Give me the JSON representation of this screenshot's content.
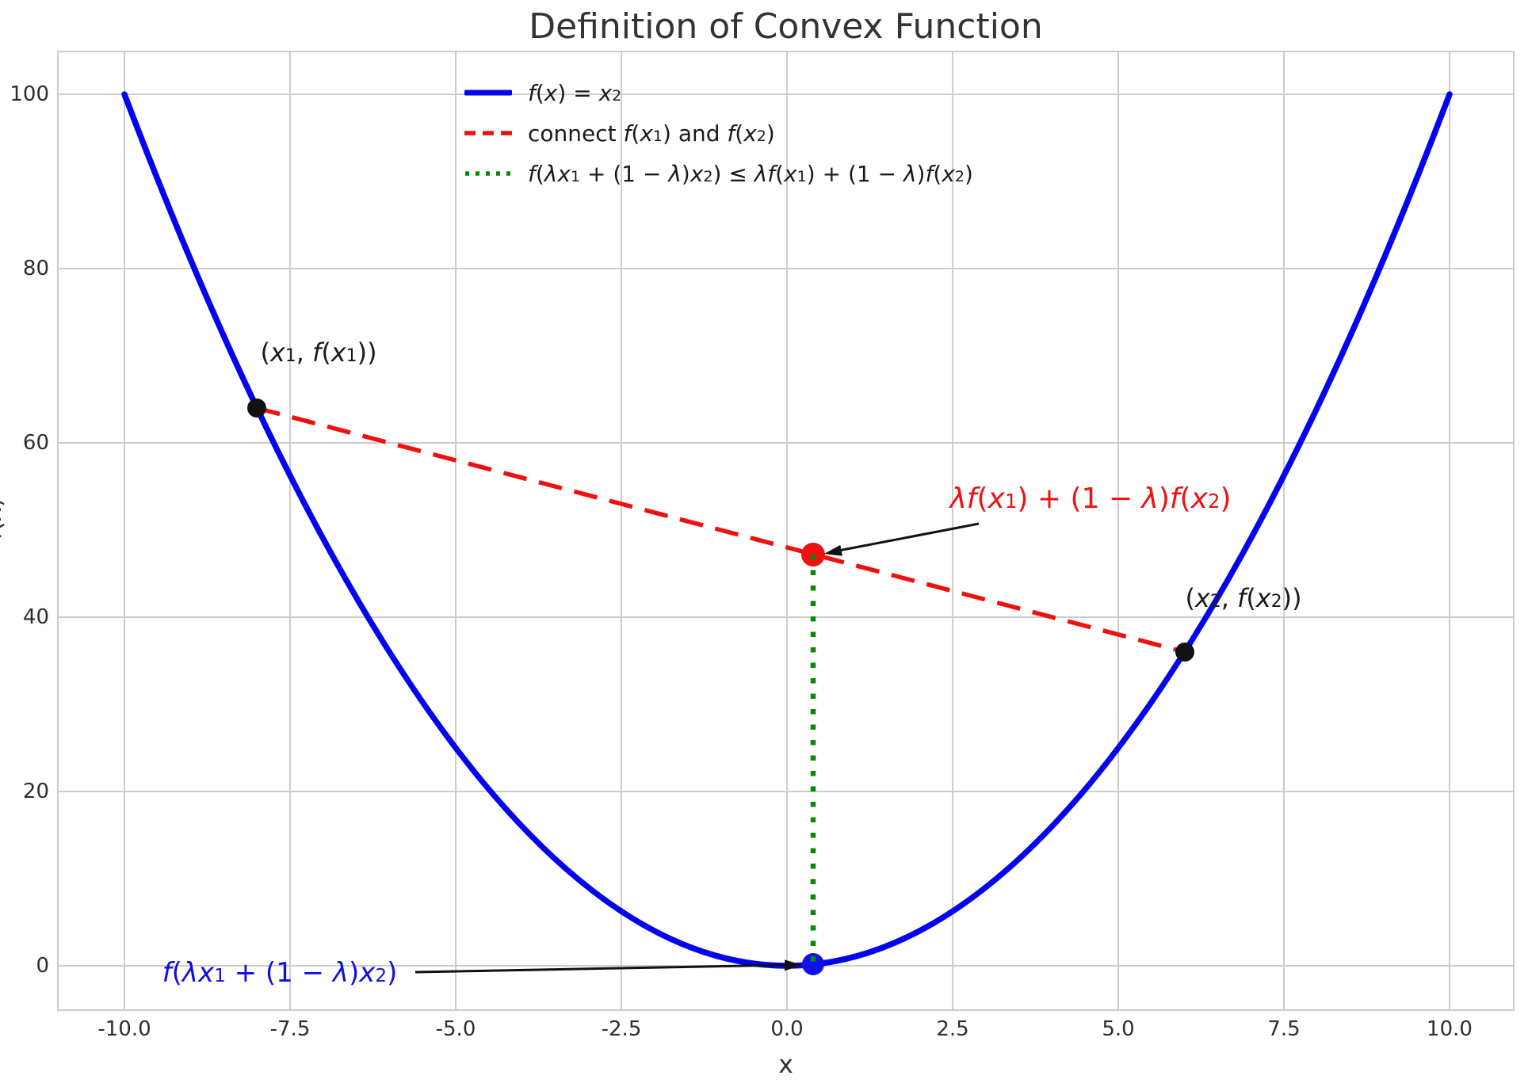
{
  "chart": {
    "title": "Definition of Convex Function",
    "xlabel": "x",
    "ylabel": "f(x)",
    "x_tick_labels": [
      "-10.0",
      "-7.5",
      "-5.0",
      "-2.5",
      "0.0",
      "2.5",
      "5.0",
      "7.5",
      "10.0"
    ],
    "y_tick_labels": [
      "0",
      "20",
      "40",
      "60",
      "80",
      "100"
    ],
    "colors": {
      "curve": "#0303f0",
      "chord": "#f01010",
      "vertical": "#098909",
      "black_point": "#111111",
      "red_point": "#f01010",
      "blue_point": "#1212e8",
      "grid": "#cccccc",
      "frame": "#cccccc",
      "arrow": "#111111",
      "red_text": "#f01010",
      "blue_text": "#0e0ee0"
    }
  },
  "legend": {
    "items": [
      {
        "plain": "f(x) = x²",
        "runs": [
          {
            "t": "f",
            "s": "i"
          },
          {
            "t": "("
          },
          {
            "t": "x",
            "s": "i"
          },
          {
            "t": ") = "
          },
          {
            "t": "x",
            "s": "i"
          },
          {
            "t": "2",
            "s": "sup"
          }
        ]
      },
      {
        "plain": "connect f(x₁) and f(x₂)",
        "runs": [
          {
            "t": "connect "
          },
          {
            "t": "f",
            "s": "i"
          },
          {
            "t": "("
          },
          {
            "t": "x",
            "s": "i"
          },
          {
            "t": "1",
            "s": "sub"
          },
          {
            "t": ") and "
          },
          {
            "t": "f",
            "s": "i"
          },
          {
            "t": "("
          },
          {
            "t": "x",
            "s": "i"
          },
          {
            "t": "2",
            "s": "sub"
          },
          {
            "t": ")"
          }
        ]
      },
      {
        "plain": "f(λx₁ + (1 − λ)x₂) ≤ λf(x₁) + (1 − λ)f(x₂)",
        "runs": [
          {
            "t": "f",
            "s": "i"
          },
          {
            "t": "("
          },
          {
            "t": "λ",
            "s": "i"
          },
          {
            "t": "x",
            "s": "i"
          },
          {
            "t": "1",
            "s": "sub"
          },
          {
            "t": " + (1 − "
          },
          {
            "t": "λ",
            "s": "i"
          },
          {
            "t": ")"
          },
          {
            "t": "x",
            "s": "i"
          },
          {
            "t": "2",
            "s": "sub"
          },
          {
            "t": ") ≤ "
          },
          {
            "t": "λ",
            "s": "i"
          },
          {
            "t": "f",
            "s": "i"
          },
          {
            "t": "("
          },
          {
            "t": "x",
            "s": "i"
          },
          {
            "t": "1",
            "s": "sub"
          },
          {
            "t": ") + (1 − "
          },
          {
            "t": "λ",
            "s": "i"
          },
          {
            "t": ")"
          },
          {
            "t": "f",
            "s": "i"
          },
          {
            "t": "("
          },
          {
            "t": "x",
            "s": "i"
          },
          {
            "t": "2",
            "s": "sub"
          },
          {
            "t": ")"
          }
        ]
      }
    ]
  },
  "annotations": {
    "p1": {
      "plain": "(x₁, f(x₁))",
      "runs": [
        {
          "t": "("
        },
        {
          "t": "x",
          "s": "i"
        },
        {
          "t": "1",
          "s": "sub"
        },
        {
          "t": ", "
        },
        {
          "t": "f",
          "s": "i"
        },
        {
          "t": "("
        },
        {
          "t": "x",
          "s": "i"
        },
        {
          "t": "1",
          "s": "sub"
        },
        {
          "t": "))"
        }
      ]
    },
    "p2": {
      "plain": "(x₂, f(x₂))",
      "runs": [
        {
          "t": "("
        },
        {
          "t": "x",
          "s": "i"
        },
        {
          "t": "2",
          "s": "sub"
        },
        {
          "t": ", "
        },
        {
          "t": "f",
          "s": "i"
        },
        {
          "t": "("
        },
        {
          "t": "x",
          "s": "i"
        },
        {
          "t": "2",
          "s": "sub"
        },
        {
          "t": "))"
        }
      ]
    },
    "red": {
      "plain": "λf(x₁) + (1 − λ)f(x₂)",
      "runs": [
        {
          "t": "λ",
          "s": "i"
        },
        {
          "t": "f",
          "s": "i"
        },
        {
          "t": "("
        },
        {
          "t": "x",
          "s": "i"
        },
        {
          "t": "1",
          "s": "sub"
        },
        {
          "t": ") + (1 − "
        },
        {
          "t": "λ",
          "s": "i"
        },
        {
          "t": ")"
        },
        {
          "t": "f",
          "s": "i"
        },
        {
          "t": "("
        },
        {
          "t": "x",
          "s": "i"
        },
        {
          "t": "2",
          "s": "sub"
        },
        {
          "t": ")"
        }
      ]
    },
    "blue": {
      "plain": "f(λx₁ + (1 − λ)x₂)",
      "runs": [
        {
          "t": "f",
          "s": "i"
        },
        {
          "t": "("
        },
        {
          "t": "λ",
          "s": "i"
        },
        {
          "t": "x",
          "s": "i"
        },
        {
          "t": "1",
          "s": "sub"
        },
        {
          "t": " + (1 − "
        },
        {
          "t": "λ",
          "s": "i"
        },
        {
          "t": ")"
        },
        {
          "t": "x",
          "s": "i"
        },
        {
          "t": "2",
          "s": "sub"
        },
        {
          "t": ")"
        }
      ]
    }
  },
  "chart_data": {
    "type": "line",
    "title": "Definition of Convex Function",
    "xlabel": "x",
    "ylabel": "f(x)",
    "xlim": [
      -11,
      11
    ],
    "ylim": [
      -5,
      105
    ],
    "x_ticks": [
      -10.0,
      -7.5,
      -5.0,
      -2.5,
      0.0,
      2.5,
      5.0,
      7.5,
      10.0
    ],
    "y_ticks": [
      0,
      20,
      40,
      60,
      80,
      100
    ],
    "grid": true,
    "legend_position": "upper center-left inside axes",
    "series": [
      {
        "name": "f(x) = x²",
        "style": "solid",
        "color": "#0303f0",
        "formula": "y = x^2",
        "x_range": [
          -10,
          10
        ],
        "sample_points": [
          [
            -10,
            100
          ],
          [
            -7.5,
            56.25
          ],
          [
            -5,
            25
          ],
          [
            -2.5,
            6.25
          ],
          [
            0,
            0
          ],
          [
            2.5,
            6.25
          ],
          [
            5,
            25
          ],
          [
            7.5,
            56.25
          ],
          [
            10,
            100
          ]
        ]
      },
      {
        "name": "connect f(x₁) and f(x₂)",
        "style": "dashed",
        "color": "#f01010",
        "points": [
          [
            -8,
            64
          ],
          [
            6,
            36
          ]
        ]
      },
      {
        "name": "f(λx₁ + (1 − λ)x₂) ≤ λf(x₁) + (1 − λ)f(x₂)",
        "style": "dotted",
        "color": "#098909",
        "points": [
          [
            0.4,
            47.2
          ],
          [
            0.4,
            0.16
          ]
        ]
      }
    ],
    "markers": [
      {
        "label": "(x₁, f(x₁))",
        "x": -8,
        "y": 64,
        "color": "#111111"
      },
      {
        "label": "(x₂, f(x₂))",
        "x": 6,
        "y": 36,
        "color": "#111111"
      },
      {
        "label": "λf(x₁) + (1 − λ)f(x₂)",
        "x": 0.4,
        "y": 47.2,
        "color": "#f01010"
      },
      {
        "label": "f(λx₁ + (1 − λ)x₂)",
        "x": 0.4,
        "y": 0.16,
        "color": "#0303f0"
      }
    ]
  }
}
